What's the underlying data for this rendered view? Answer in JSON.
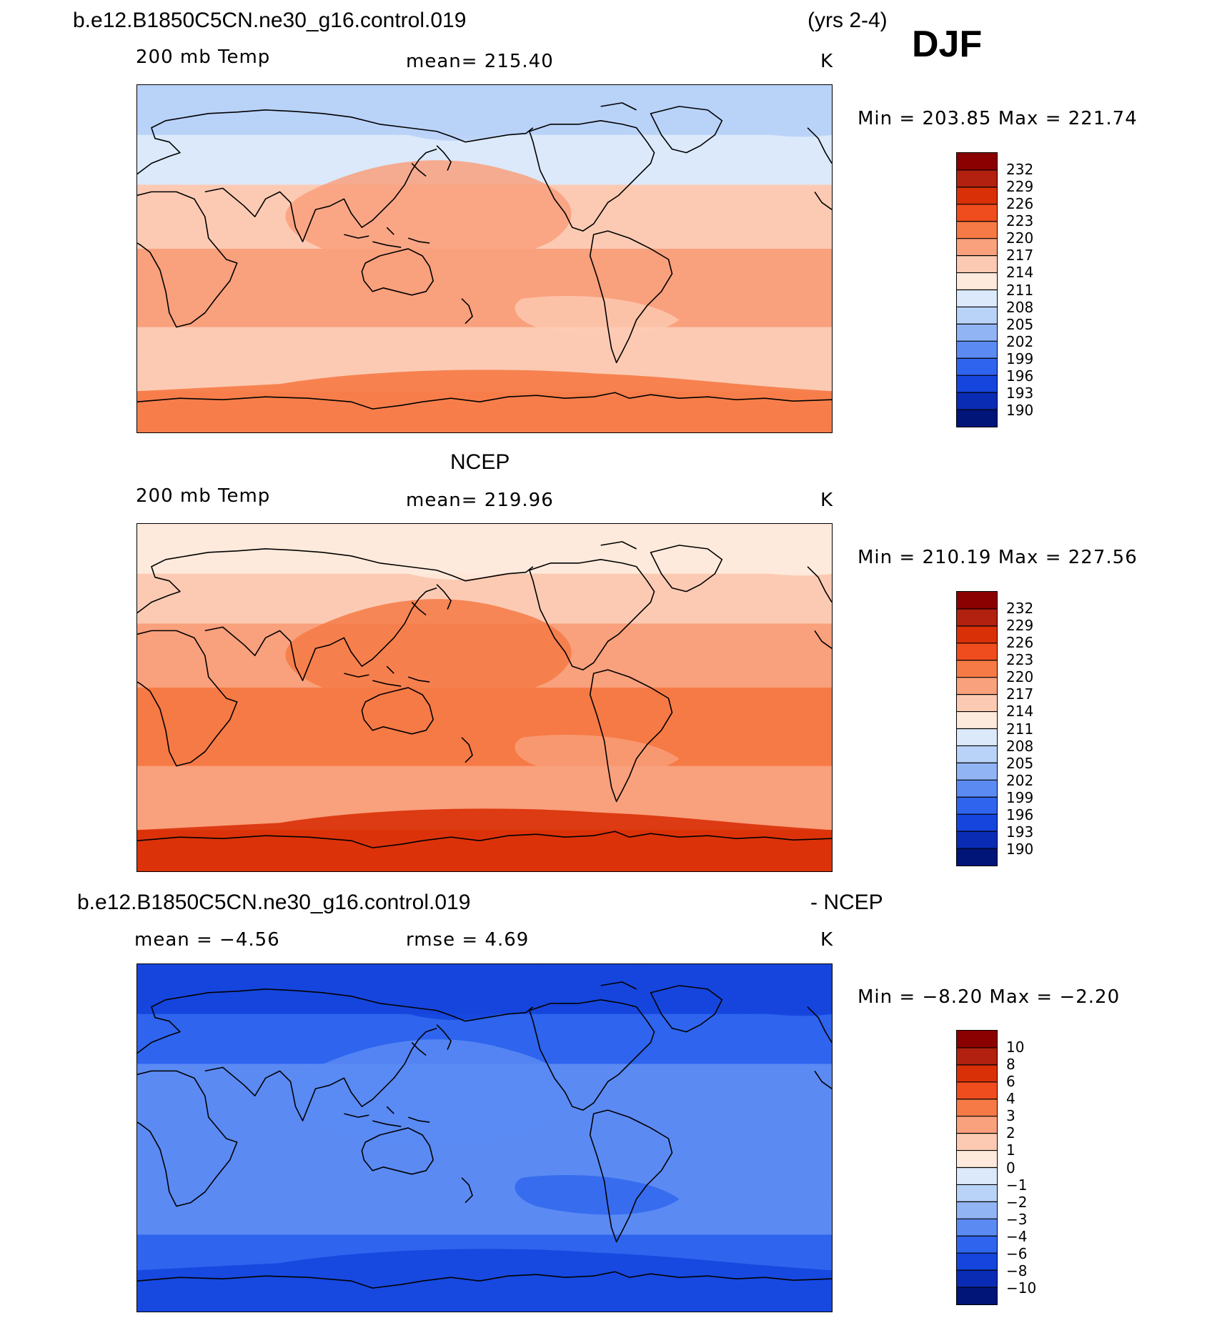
{
  "header": {
    "case_name": "b.e12.B1850C5CN.ne30_g16.control.019",
    "years": "(yrs 2-4)",
    "season": "DJF"
  },
  "panels": [
    {
      "title": "",
      "variable": "200 mb Temp",
      "stat": "mean=  215.40",
      "units": "K",
      "minmax": "Min  =  203.85  Max  =  221.74",
      "levels": [
        "232",
        "229",
        "226",
        "223",
        "220",
        "217",
        "214",
        "211",
        "208",
        "205",
        "202",
        "199",
        "196",
        "193",
        "190"
      ],
      "colors": [
        "#8b0000",
        "#b2200f",
        "#d93008",
        "#f04d1e",
        "#f67a45",
        "#f9a07c",
        "#fccab3",
        "#feeadc",
        "#dbe9fa",
        "#b9d2f7",
        "#91b4f5",
        "#5b8af3",
        "#2e64ee",
        "#1545dd",
        "#0a2cb5",
        "#011478"
      ],
      "field_colors": {
        "polar_north": "#b9d2f7",
        "midlat_north": "#dbe9fa",
        "subtropic": "#fccab3",
        "tropic": "#f9a07c",
        "south_mid": "#fccab3",
        "south_band": "#f9a07c",
        "antarctic": "#f67a45"
      }
    },
    {
      "title": "NCEP",
      "variable": "200 mb Temp",
      "stat": "mean=  219.96",
      "units": "K",
      "minmax": "Min  =  210.19  Max  =  227.56",
      "levels": [
        "232",
        "229",
        "226",
        "223",
        "220",
        "217",
        "214",
        "211",
        "208",
        "205",
        "202",
        "199",
        "196",
        "193",
        "190"
      ],
      "colors": [
        "#8b0000",
        "#b2200f",
        "#d93008",
        "#f04d1e",
        "#f67a45",
        "#f9a07c",
        "#fccab3",
        "#feeadc",
        "#dbe9fa",
        "#b9d2f7",
        "#91b4f5",
        "#5b8af3",
        "#2e64ee",
        "#1545dd",
        "#0a2cb5",
        "#011478"
      ],
      "field_colors": {
        "polar_north": "#feeadc",
        "midlat_north": "#fccab3",
        "subtropic": "#f9a07c",
        "tropic": "#f67a45",
        "south_mid": "#f9a07c",
        "south_band": "#f04d1e",
        "antarctic": "#d93008"
      }
    },
    {
      "title_left": "b.e12.B1850C5CN.ne30_g16.control.019",
      "title_right": "- NCEP",
      "stat_left": "mean  =    −4.56",
      "stat": "rmse  =     4.69",
      "units": "K",
      "minmax": "Min  =    −8.20  Max  =    −2.20",
      "levels": [
        "10",
        "8",
        "6",
        "4",
        "3",
        "2",
        "1",
        "0",
        "−1",
        "−2",
        "−3",
        "−4",
        "−6",
        "−8",
        "−10"
      ],
      "colors": [
        "#8b0000",
        "#b2200f",
        "#d93008",
        "#f04d1e",
        "#f67a45",
        "#f9a07c",
        "#fccab3",
        "#feeadc",
        "#dbe9fa",
        "#b9d2f7",
        "#91b4f5",
        "#5b8af3",
        "#2e64ee",
        "#1545dd",
        "#0a2cb5",
        "#011478"
      ],
      "field_colors": {
        "polar_north": "#1545dd",
        "midlat_north": "#2e64ee",
        "subtropic": "#5b8af3",
        "tropic": "#5b8af3",
        "south_mid": "#2e64ee",
        "south_band": "#2e64ee",
        "antarctic": "#1545dd"
      }
    }
  ]
}
